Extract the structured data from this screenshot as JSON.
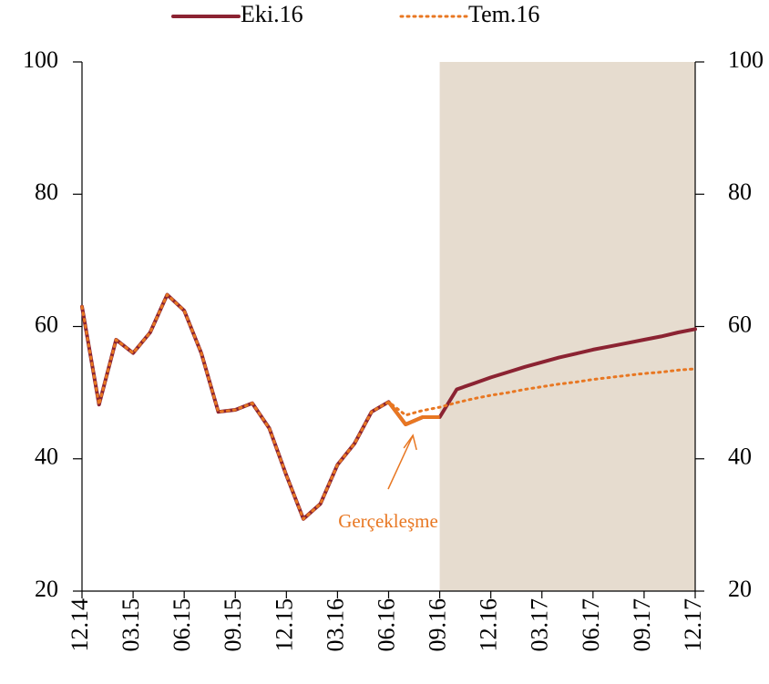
{
  "chart_data": {
    "type": "line",
    "categories": [
      "12.14",
      null,
      null,
      "03.15",
      null,
      null,
      "06.15",
      null,
      null,
      "09.15",
      null,
      null,
      "12.15",
      null,
      null,
      "03.16",
      null,
      null,
      "06.16",
      null,
      null,
      "09.16",
      null,
      null,
      "12.16",
      null,
      null,
      "03.17",
      null,
      null,
      "06.17",
      null,
      null,
      "09.17",
      null,
      null,
      "12.17"
    ],
    "series": [
      {
        "name": "Eki.16",
        "color": "#8b2332",
        "style": "solid",
        "values": [
          63,
          48.2,
          58,
          56,
          59.1,
          64.8,
          62.4,
          56,
          47.1,
          47.4,
          48.4,
          44.6,
          37.5,
          30.9,
          33.2,
          39.1,
          42.3,
          47.1,
          48.6,
          45.2,
          46.3,
          46.3,
          50.5,
          51.4,
          52.3,
          53.1,
          53.9,
          54.6,
          55.3,
          55.9,
          56.5,
          57.0,
          57.5,
          58.0,
          58.5,
          59.1,
          59.6
        ]
      },
      {
        "name": "Tem.16",
        "color": "#e87722",
        "style": "dotted",
        "values": [
          63,
          48.2,
          58,
          56,
          59.1,
          64.8,
          62.4,
          56,
          47.1,
          47.4,
          48.4,
          44.6,
          37.5,
          30.9,
          33.2,
          39.1,
          42.3,
          47.1,
          48.6,
          46.6,
          47.3,
          47.8,
          48.5,
          49.1,
          49.6,
          50.0,
          50.5,
          50.9,
          51.3,
          51.6,
          52.0,
          52.3,
          52.6,
          52.9,
          53.1,
          53.4,
          53.6
        ]
      }
    ],
    "ylim": [
      20,
      100
    ],
    "yticks": [
      20,
      40,
      60,
      80,
      100
    ],
    "y2lim": [
      20,
      100
    ],
    "y2ticks": [
      20,
      40,
      60,
      80,
      100
    ],
    "shaded_from": "09.16",
    "shade_color": "#e6dccf",
    "annotation": {
      "text": "Gerçekleşme",
      "color": "#e87722",
      "span": [
        "06.16",
        "09.16"
      ]
    },
    "legend": "top"
  }
}
